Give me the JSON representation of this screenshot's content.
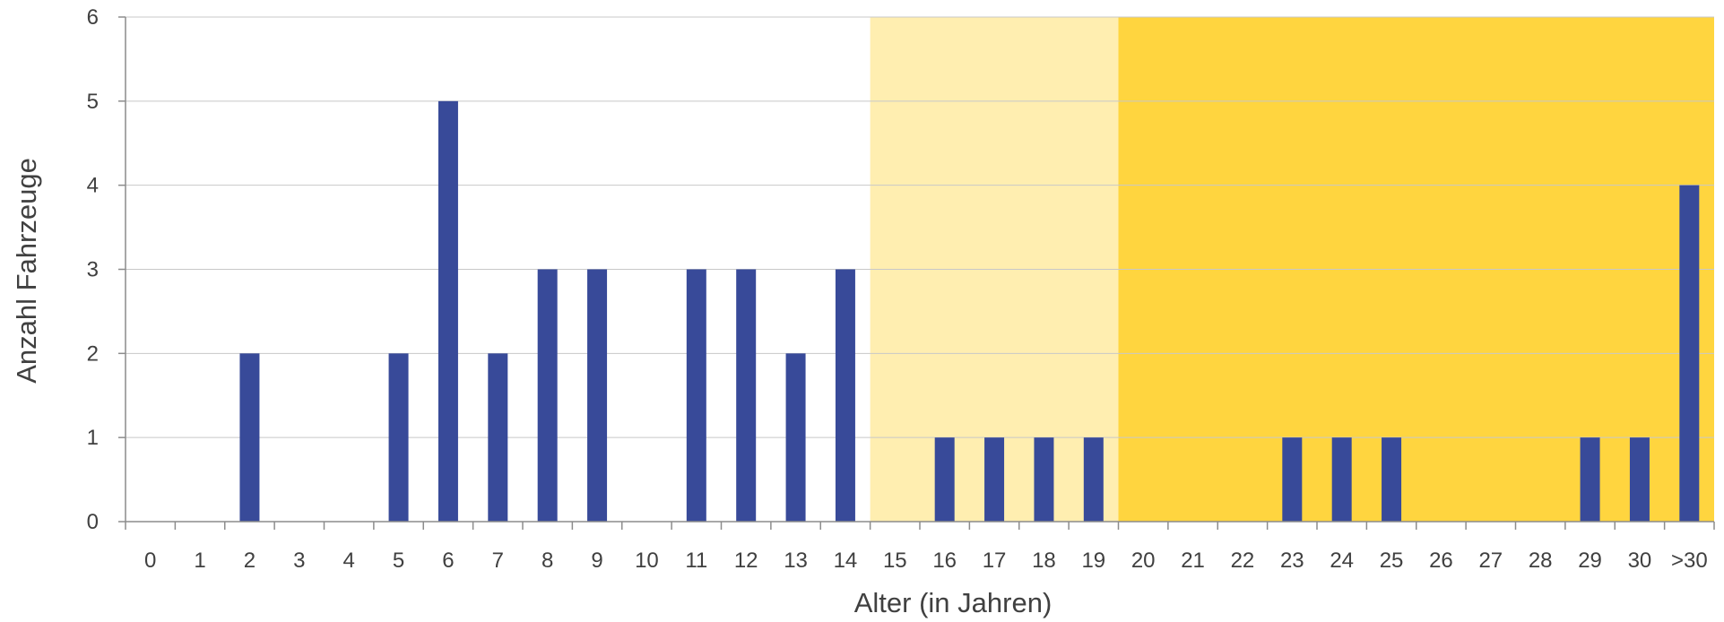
{
  "chart_data": {
    "type": "bar",
    "xlabel": "Alter (in Jahren)",
    "ylabel": "Anzahl Fahrzeuge",
    "ylim": [
      0,
      6
    ],
    "yticks": [
      "0",
      "1",
      "2",
      "3",
      "4",
      "5",
      "6"
    ],
    "grid": true,
    "categories": [
      "0",
      "1",
      "2",
      "3",
      "4",
      "5",
      "6",
      "7",
      "8",
      "9",
      "10",
      "11",
      "12",
      "13",
      "14",
      "15",
      "16",
      "17",
      "18",
      "19",
      "20",
      "21",
      "22",
      "23",
      "24",
      "25",
      "26",
      "27",
      "28",
      "29",
      "30",
      ">30"
    ],
    "values": [
      0,
      0,
      2,
      0,
      0,
      2,
      5,
      2,
      3,
      3,
      0,
      3,
      3,
      2,
      3,
      0,
      1,
      1,
      1,
      1,
      0,
      0,
      0,
      1,
      1,
      1,
      0,
      0,
      0,
      1,
      1,
      4
    ],
    "background_bands": [
      {
        "from_category": "15",
        "to_category": "19",
        "color": "#FFEEB0"
      },
      {
        "from_category": "20",
        "to_category": ">30",
        "color": "#FFD53F"
      }
    ],
    "bar_color": "#384A99"
  }
}
